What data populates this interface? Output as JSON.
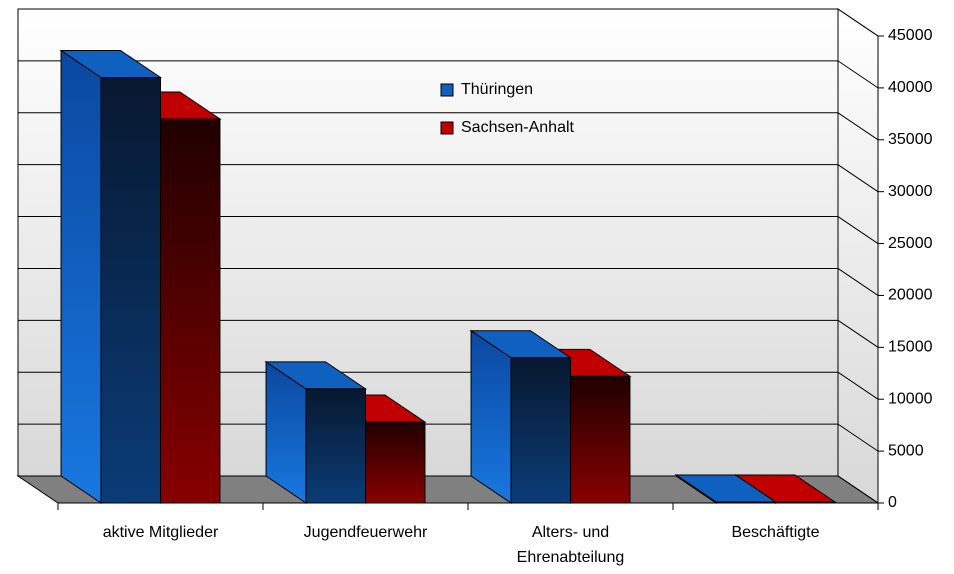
{
  "chart_data": {
    "type": "bar3d",
    "categories": [
      "aktive Mitglieder",
      "Jugendfeuerwehr",
      "Alters- und Ehrenabteilung",
      "Beschäftigte"
    ],
    "series": [
      {
        "name": "Thüringen",
        "color": "#1060c0",
        "values": [
          41000,
          11000,
          14000,
          100
        ]
      },
      {
        "name": "Sachsen-Anhalt",
        "color": "#c00000",
        "values": [
          37000,
          7800,
          12200,
          100
        ]
      }
    ],
    "ylim": [
      0,
      45000
    ],
    "yticks": [
      0,
      5000,
      10000,
      15000,
      20000,
      25000,
      30000,
      35000,
      40000,
      45000
    ],
    "grid": true
  }
}
